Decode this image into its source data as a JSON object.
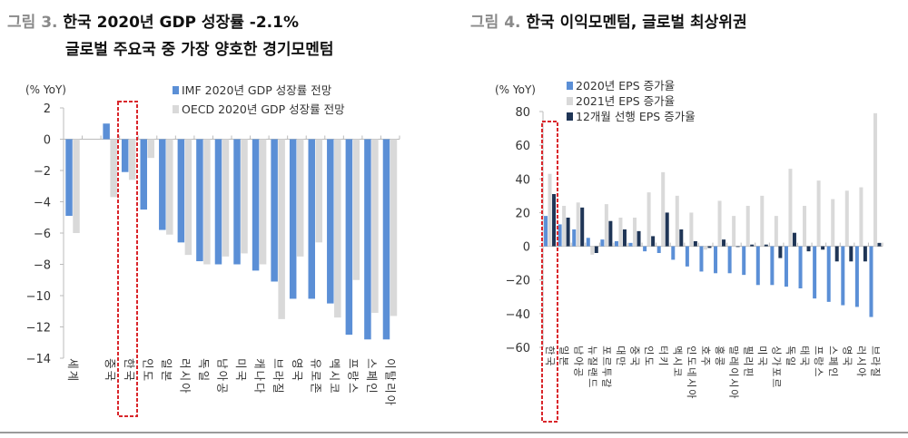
{
  "figure3": {
    "label": "그림 3.",
    "title_line1": "한국 2020년 GDP 성장률 -2.1%",
    "title_line2": "글로벌 주요국 중 가장 양호한 경기모멘텀"
  },
  "figure4": {
    "label": "그림 4.",
    "title": "한국 이익모멘텀, 글로벌 최상위권"
  },
  "chart_data": [
    {
      "type": "bar",
      "ylabel": "(% YoY)",
      "ylim": [
        -14,
        2
      ],
      "yticks": [
        2,
        0,
        -2,
        -4,
        -6,
        -8,
        -10,
        -12,
        -14
      ],
      "legend": "top-right",
      "highlight": "한국",
      "categories": [
        "세계",
        "",
        "중국",
        "한국",
        "인도",
        "일본",
        "러시아",
        "독일",
        "남아공",
        "미국",
        "캐나다",
        "브라질",
        "영국",
        "유로존",
        "멕시코",
        "프랑스",
        "스페인",
        "이탈리아"
      ],
      "series": [
        {
          "name": "IMF 2020년 GDP 성장률 전망",
          "color": "#5b8fd6",
          "values": [
            -4.9,
            null,
            1.0,
            -2.1,
            -4.5,
            -5.8,
            -6.6,
            -7.8,
            -8.0,
            -8.0,
            -8.4,
            -9.1,
            -10.2,
            -10.2,
            -10.5,
            -12.5,
            -12.8,
            -12.8
          ]
        },
        {
          "name": "OECD 2020년 GDP 성장률 전망",
          "color": "#d9d9d9",
          "values": [
            -6.0,
            null,
            -3.7,
            -2.6,
            -1.2,
            -6.1,
            -7.4,
            -8.0,
            -7.5,
            -7.3,
            -8.0,
            -11.5,
            -7.5,
            -6.6,
            -11.4,
            -9.0,
            -11.1,
            -11.3
          ]
        }
      ]
    },
    {
      "type": "bar",
      "ylabel": "(% YoY)",
      "ylim": [
        -60,
        80
      ],
      "yticks": [
        80,
        60,
        40,
        20,
        0,
        -20,
        -40,
        -60
      ],
      "legend": "top-left",
      "highlight": "한국",
      "categories": [
        "한국",
        "일본",
        "남아공",
        "뉴질랜드",
        "포르투갈",
        "대만",
        "중국",
        "인도",
        "터키",
        "멕시코",
        "인도네시아",
        "호주",
        "홍콩",
        "말레이시아",
        "필리핀",
        "미국",
        "싱가포르",
        "독일",
        "태국",
        "프랑스",
        "스페인",
        "영국",
        "러시아",
        "브라질"
      ],
      "series": [
        {
          "name": "2020년 EPS 증가율",
          "color": "#5b8fd6",
          "values": [
            18,
            13,
            10,
            5,
            4,
            3,
            2,
            -3,
            -4,
            -8,
            -12,
            -15,
            -16,
            -16,
            -17,
            -23,
            -23,
            -24,
            -25,
            -31,
            -33,
            -35,
            -36,
            -42
          ]
        },
        {
          "name": "2021년 EPS 증가율",
          "color": "#d9d9d9",
          "values": [
            43,
            24,
            26,
            -5,
            25,
            17,
            17,
            32,
            44,
            30,
            20,
            -2,
            27,
            18,
            24,
            30,
            18,
            46,
            24,
            39,
            28,
            33,
            35,
            79
          ]
        },
        {
          "name": "12개월 선행 EPS 증가율",
          "color": "#1f3556",
          "values": [
            31,
            17,
            23,
            -4,
            15,
            10,
            9,
            6,
            20,
            10,
            3,
            -1,
            4,
            0,
            1,
            1,
            -7,
            8,
            -3,
            -2,
            -9,
            -9,
            -9,
            2
          ]
        }
      ]
    }
  ]
}
